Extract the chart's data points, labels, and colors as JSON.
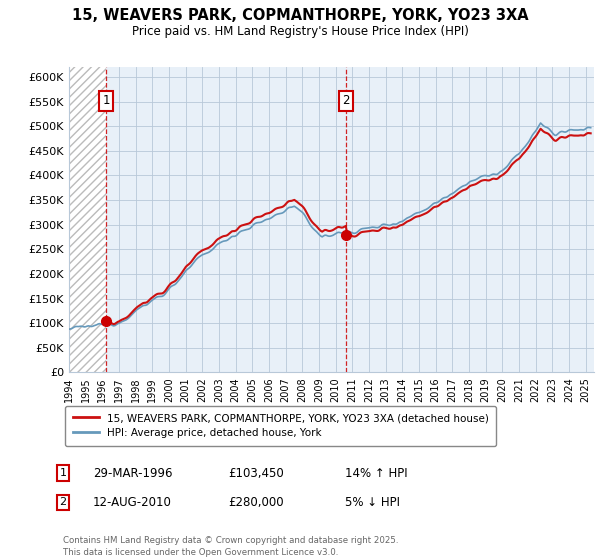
{
  "title": "15, WEAVERS PARK, COPMANTHORPE, YORK, YO23 3XA",
  "subtitle": "Price paid vs. HM Land Registry's House Price Index (HPI)",
  "ylim": [
    0,
    620000
  ],
  "yticks": [
    0,
    50000,
    100000,
    150000,
    200000,
    250000,
    300000,
    350000,
    400000,
    450000,
    500000,
    550000,
    600000
  ],
  "ytick_labels": [
    "£0",
    "£50K",
    "£100K",
    "£150K",
    "£200K",
    "£250K",
    "£300K",
    "£350K",
    "£400K",
    "£450K",
    "£500K",
    "£550K",
    "£600K"
  ],
  "xlim_start": 1994.0,
  "xlim_end": 2025.5,
  "sale1_x": 1996.24,
  "sale1_y": 103450,
  "sale1_label": "1",
  "sale2_x": 2010.62,
  "sale2_y": 280000,
  "sale2_label": "2",
  "sale_color": "#cc0000",
  "legend_sale": "15, WEAVERS PARK, COPMANTHORPE, YORK, YO23 3XA (detached house)",
  "legend_hpi": "HPI: Average price, detached house, York",
  "info1_num": "1",
  "info1_date": "29-MAR-1996",
  "info1_price": "£103,450",
  "info1_hpi": "14% ↑ HPI",
  "info2_num": "2",
  "info2_date": "12-AUG-2010",
  "info2_price": "£280,000",
  "info2_hpi": "5% ↓ HPI",
  "footer": "Contains HM Land Registry data © Crown copyright and database right 2025.\nThis data is licensed under the Open Government Licence v3.0.",
  "bg_color": "#ffffff",
  "plot_bg_color": "#e8f0f8",
  "grid_color": "#b8c8d8",
  "sale_line_color": "#cc1111",
  "hpi_line_color": "#6699bb",
  "hpi_fill_alpha": 0.35
}
